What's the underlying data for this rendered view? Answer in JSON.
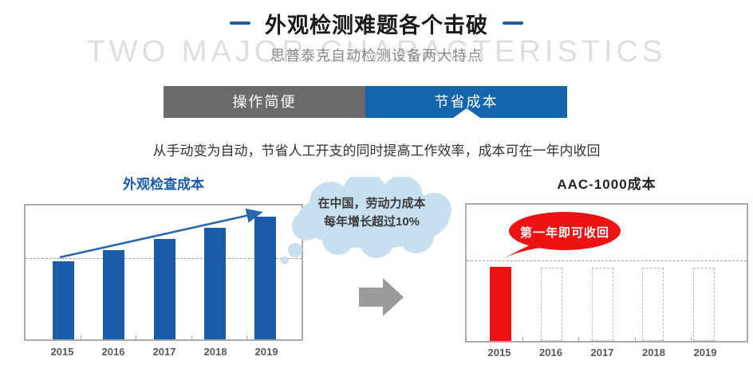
{
  "header": {
    "title": "外观检测难题各个击破",
    "subtitle": "思普泰克自动检测设备两大特点",
    "watermark": "TWO MAJOR CHARACTERISTICS"
  },
  "tabs": {
    "items": [
      {
        "label": "操作简便",
        "active": false
      },
      {
        "label": "节省成本",
        "active": true
      }
    ]
  },
  "description": "从手动变为自动，节省人工开支的同时提高工作效率，成本可在一年内收回",
  "bubbles": {
    "cloud_line1": "在中国，劳动力成本",
    "cloud_line2": "每年增长超过10%",
    "red_label": "第一年即可收回"
  },
  "colors": {
    "accent_blue": "#1b5caa",
    "tab_blue": "#1565ad",
    "tab_gray": "#6b6b6b",
    "red": "#ee1212",
    "cloud_blue": "#c8dff0",
    "watermark_gray": "#dedede",
    "border_gray": "#a9a9a9",
    "arrow_gray": "#9b9b9b"
  },
  "chart_data": [
    {
      "type": "bar",
      "title": "外观检查成本",
      "categories": [
        "2015",
        "2016",
        "2017",
        "2018",
        "2019"
      ],
      "values": [
        100,
        114,
        129,
        143,
        157
      ],
      "bar_color": "#1b5caa",
      "gridline_value": 103,
      "ylim": [
        0,
        172
      ],
      "annotation": "upward trend arrow across bar tops",
      "legend": "none",
      "xlabel": "",
      "ylabel": ""
    },
    {
      "type": "bar",
      "title": "AAC-1000成本",
      "categories": [
        "2015",
        "2016",
        "2017",
        "2018",
        "2019"
      ],
      "values": [
        95,
        0,
        0,
        0,
        0
      ],
      "placeholder_values": [
        0,
        94,
        94,
        94,
        94
      ],
      "bar_color": "#ee1212",
      "gridline_value": 102,
      "ylim": [
        0,
        175
      ],
      "annotation": "第一年即可收回",
      "legend": "none",
      "xlabel": "",
      "ylabel": ""
    }
  ]
}
